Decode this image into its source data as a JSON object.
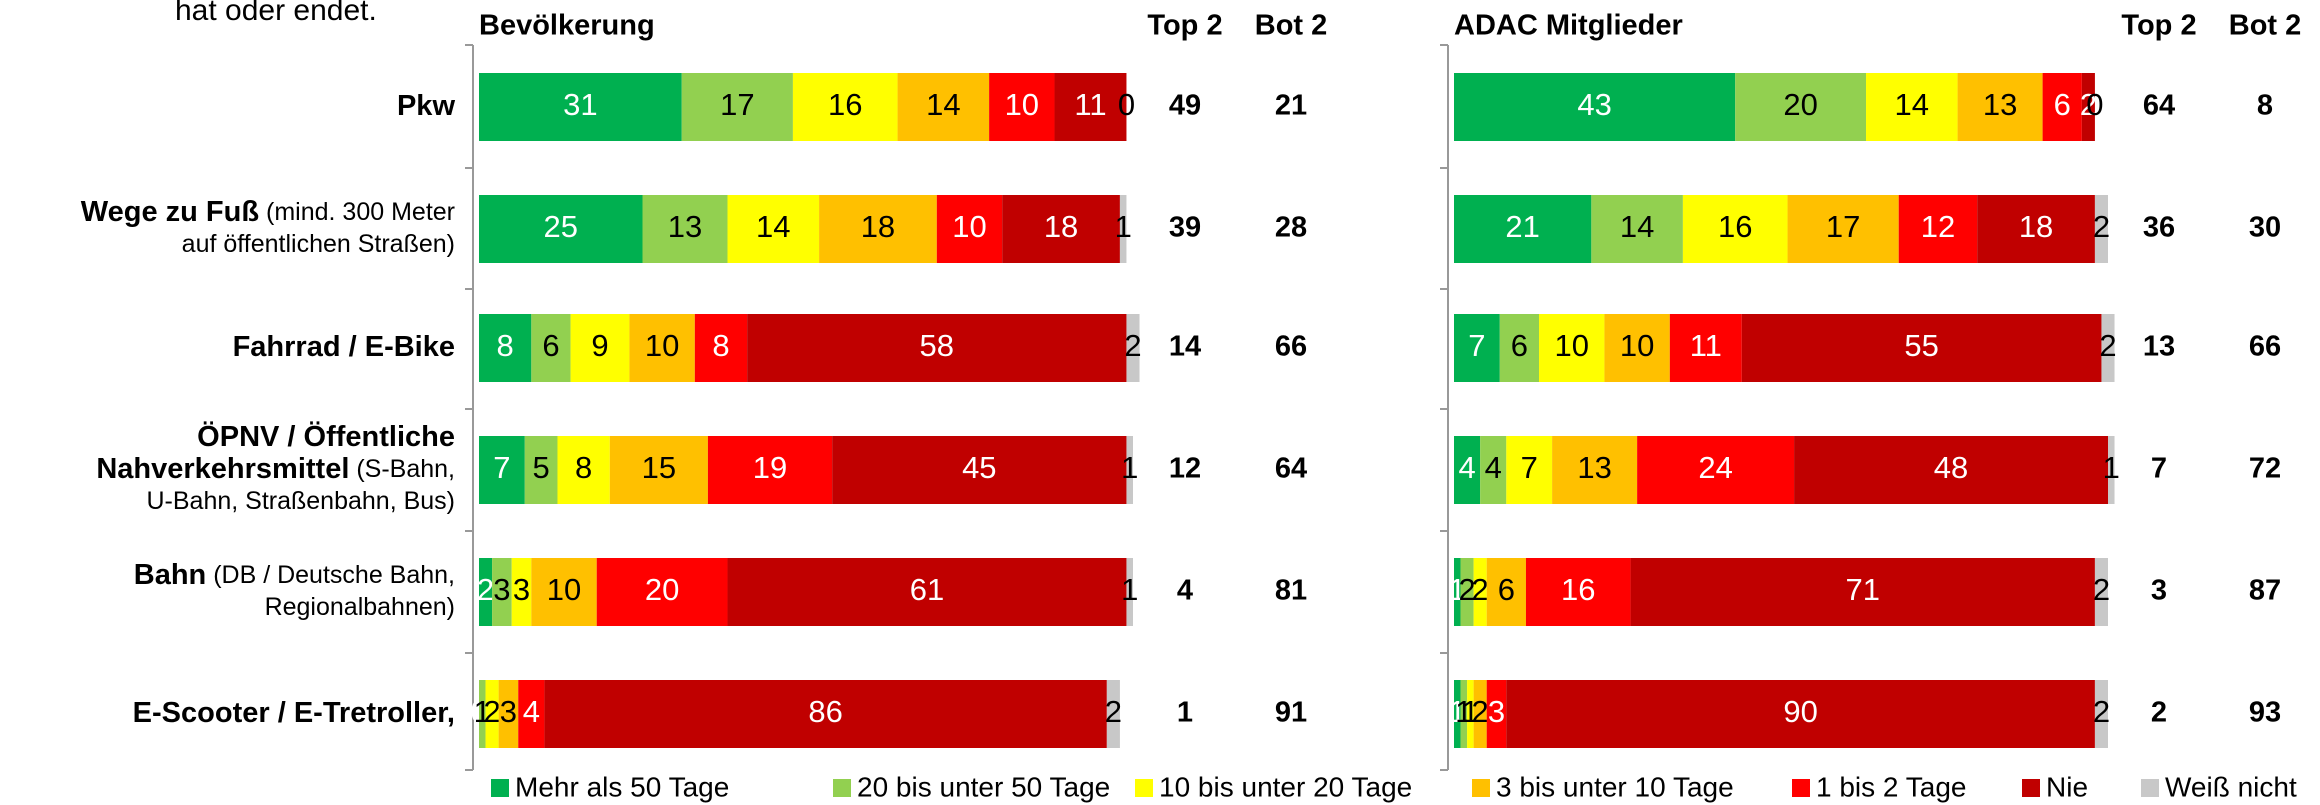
{
  "intro_fragment": "hat oder endet.",
  "row_labels": [
    [
      [
        {
          "text": "Pkw",
          "bold": true
        }
      ]
    ],
    [
      [
        {
          "text": "Wege zu Fuß",
          "bold": true
        },
        {
          "text": " (mind. 300 Meter"
        }
      ],
      [
        {
          "text": "auf öffentlichen Straßen)"
        }
      ]
    ],
    [
      [
        {
          "text": "Fahrrad / E-Bike",
          "bold": true
        }
      ]
    ],
    [
      [
        {
          "text": "ÖPNV / Öffentliche",
          "bold": true
        }
      ],
      [
        {
          "text": "Nahverkehrsmittel",
          "bold": true
        },
        {
          "text": " (S-Bahn,"
        }
      ],
      [
        {
          "text": "U-Bahn, Straßenbahn, Bus)"
        }
      ]
    ],
    [
      [
        {
          "text": "Bahn",
          "bold": true
        },
        {
          "text": " (DB / Deutsche Bahn,"
        }
      ],
      [
        {
          "text": "Regionalbahnen)"
        }
      ]
    ],
    [
      [
        {
          "text": "E-Scooter / E-Tretroller,",
          "bold": true
        }
      ]
    ]
  ],
  "legend": [
    {
      "name": "Mehr als 50 Tage",
      "color": "#00b050"
    },
    {
      "name": "20 bis unter 50 Tage",
      "color": "#92d050"
    },
    {
      "name": "10 bis unter 20 Tage",
      "color": "#ffff00"
    },
    {
      "name": "3 bis unter 10 Tage",
      "color": "#ffc000"
    },
    {
      "name": "1 bis 2 Tage",
      "color": "#ff0000"
    },
    {
      "name": "Nie",
      "color": "#c00000"
    },
    {
      "name": "Weiß nicht",
      "color": "#c8c8c8"
    }
  ],
  "chart_data": [
    {
      "type": "stacked-bar",
      "title": "Bevölkerung",
      "top2_header": "Top 2",
      "bot2_header": "Bot 2",
      "series": [
        {
          "values": [
            31,
            25,
            8,
            7,
            2,
            0
          ]
        },
        {
          "values": [
            17,
            13,
            6,
            5,
            3,
            1
          ]
        },
        {
          "values": [
            16,
            14,
            9,
            8,
            3,
            2
          ]
        },
        {
          "values": [
            14,
            18,
            10,
            15,
            10,
            3
          ]
        },
        {
          "values": [
            10,
            10,
            8,
            19,
            20,
            4
          ]
        },
        {
          "values": [
            11,
            18,
            58,
            45,
            61,
            86
          ]
        },
        {
          "values": [
            0,
            1,
            2,
            1,
            1,
            2
          ]
        }
      ],
      "top2": [
        49,
        39,
        14,
        12,
        4,
        1
      ],
      "bot2": [
        21,
        28,
        66,
        64,
        81,
        91
      ]
    },
    {
      "type": "stacked-bar",
      "title": "ADAC Mitglieder",
      "top2_header": "Top 2",
      "bot2_header": "Bot 2",
      "series": [
        {
          "values": [
            43,
            21,
            7,
            4,
            1,
            1
          ]
        },
        {
          "values": [
            20,
            14,
            6,
            4,
            2,
            1
          ]
        },
        {
          "values": [
            14,
            16,
            10,
            7,
            2,
            1
          ]
        },
        {
          "values": [
            13,
            17,
            10,
            13,
            6,
            2
          ]
        },
        {
          "values": [
            6,
            12,
            11,
            24,
            16,
            3
          ]
        },
        {
          "values": [
            2,
            18,
            55,
            48,
            71,
            90
          ]
        },
        {
          "values": [
            0,
            2,
            2,
            1,
            2,
            2
          ]
        }
      ],
      "top2": [
        64,
        36,
        13,
        7,
        3,
        2
      ],
      "bot2": [
        8,
        30,
        66,
        72,
        87,
        93
      ]
    }
  ]
}
